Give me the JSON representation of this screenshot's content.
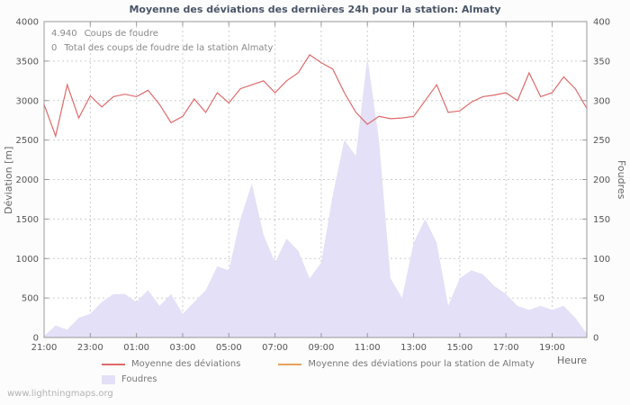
{
  "annotations": {
    "strikes": {
      "value": "4.940",
      "label": "Coups de foudre"
    },
    "station": {
      "value": "0",
      "label": "Total des coups de foudre de la station Almaty"
    }
  },
  "watermark": "www.lightningmaps.org",
  "chart_data": {
    "type": "line+area",
    "title": "Moyenne des déviations des dernières 24h pour la station: Almaty",
    "xlabel": "Heure",
    "span_hours": 23.5,
    "tick_interval_hours": 2,
    "point_interval_hours": 0.5,
    "x_ticks": [
      "21:00",
      "23:00",
      "01:00",
      "03:00",
      "05:00",
      "07:00",
      "09:00",
      "11:00",
      "13:00",
      "15:00",
      "17:00",
      "19:00"
    ],
    "left_axis": {
      "label": "Déviation [m]",
      "min": 0,
      "max": 4000,
      "step": 500
    },
    "right_axis": {
      "label": "Foudres",
      "min": 0,
      "max": 400,
      "step": 50
    },
    "grid": true,
    "legend_position": "bottom",
    "frame_color": "#999999",
    "grid_color": "#cccccc",
    "tick_label_color": "#555555",
    "series": [
      {
        "name": "Moyenne des déviations",
        "type": "line",
        "axis": "left",
        "color": "#dd6a6a",
        "values": [
          2950,
          2550,
          3200,
          2780,
          3060,
          2920,
          3050,
          3080,
          3050,
          3130,
          2950,
          2720,
          2800,
          3020,
          2850,
          3100,
          2970,
          3150,
          3200,
          3250,
          3100,
          3250,
          3350,
          3580,
          3480,
          3400,
          3100,
          2850,
          2700,
          2800,
          2770,
          2780,
          2800,
          3000,
          3200,
          2850,
          2870,
          2980,
          3050,
          3070,
          3100,
          3000,
          3350,
          3050,
          3100,
          3300,
          3150,
          2900
        ]
      },
      {
        "name": "Moyenne des déviations pour la station de Almaty",
        "type": "line",
        "axis": "left",
        "color": "#e8a25c",
        "values": []
      },
      {
        "name": "Foudres",
        "type": "area",
        "axis": "right",
        "color": "#e3e0f7",
        "values": [
          2,
          15,
          10,
          25,
          30,
          45,
          55,
          55,
          45,
          60,
          40,
          55,
          30,
          45,
          60,
          90,
          85,
          150,
          195,
          130,
          95,
          125,
          110,
          75,
          95,
          180,
          250,
          230,
          355,
          250,
          75,
          50,
          120,
          150,
          120,
          40,
          75,
          85,
          80,
          65,
          55,
          40,
          35,
          40,
          35,
          40,
          25,
          5
        ]
      }
    ]
  }
}
